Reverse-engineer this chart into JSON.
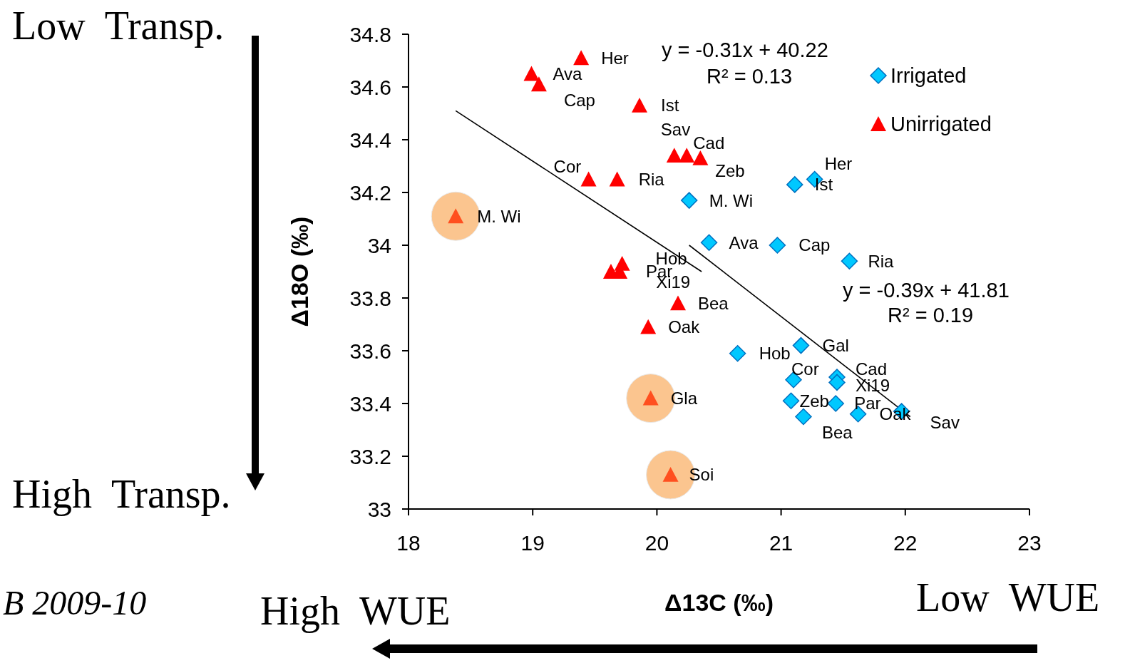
{
  "chart_data": {
    "type": "scatter",
    "xlabel": "Δ13C (‰)",
    "ylabel": "Δ18O (‰)",
    "xlim": [
      18,
      23
    ],
    "xticks": [
      18,
      19,
      20,
      21,
      22,
      23
    ],
    "ylim": [
      33,
      34.8
    ],
    "yticks": [
      33,
      {
        "value": 33.2,
        "label": "33.2"
      },
      {
        "value": 33.4,
        "label": "33.4"
      },
      {
        "value": 33.6,
        "label": "33.6"
      },
      {
        "value": 33.8,
        "label": "33.8"
      },
      34,
      {
        "value": 34.2,
        "label": "34.2"
      },
      {
        "value": 34.4,
        "label": "34.4"
      },
      {
        "value": 34.6,
        "label": "34.6"
      },
      {
        "value": 34.8,
        "label": "34.8"
      }
    ],
    "grid": false,
    "legend": "top right",
    "series": [
      {
        "marker": "circle",
        "color": "#fbc58f",
        "x": [
          18.38,
          19.95,
          20.11
        ],
        "values": [
          34.11,
          33.42,
          33.13
        ]
      },
      {
        "type": "line",
        "color": "#000000",
        "x": [
          18.38,
          20.36
        ],
        "values": [
          34.51,
          33.9
        ]
      },
      {
        "type": "line",
        "color": "#000000",
        "x": [
          20.26,
          22.04
        ],
        "values": [
          34.0,
          33.35
        ]
      },
      {
        "name": "Irrigated",
        "marker": "diamond",
        "color": "#00c8ff",
        "x": [
          21.27,
          21.11,
          20.26,
          20.42,
          20.97,
          21.55,
          21.16,
          20.65,
          21.1,
          21.45,
          21.45,
          21.08,
          21.44,
          21.18,
          21.62,
          21.97
        ],
        "values": [
          34.25,
          34.23,
          34.17,
          34.01,
          34.0,
          33.94,
          33.62,
          33.59,
          33.49,
          33.5,
          33.48,
          33.41,
          33.4,
          33.35,
          33.36,
          33.37
        ]
      },
      {
        "name": "Unirrigated",
        "marker": "triangle",
        "color": "#ff0000",
        "colors": [
          "#ff0000",
          "#ff0000",
          "#ff0000",
          "#ff0000",
          "#ff0000",
          "#ff0000",
          "#ff0000",
          "#ff0000",
          "#ff0000",
          "#ff4f1f",
          "#ff0000",
          "#ff0000",
          "#ff0000",
          "#ff0000",
          "#ff0000",
          "#ff4f1f",
          "#ff4f1f"
        ],
        "x": [
          19.39,
          18.99,
          19.05,
          19.86,
          20.14,
          20.24,
          20.35,
          19.45,
          19.68,
          18.38,
          19.72,
          19.63,
          19.7,
          20.17,
          19.93,
          19.95,
          20.11
        ],
        "values": [
          34.71,
          34.65,
          34.61,
          34.53,
          34.34,
          34.34,
          34.33,
          34.25,
          34.25,
          34.11,
          33.93,
          33.9,
          33.9,
          33.78,
          33.69,
          33.42,
          33.13
        ]
      }
    ],
    "annotations": [
      "Low  Transp.",
      "High  Transp.",
      "B 2009-10",
      "High  WUE",
      "Low  WUE",
      "y = -0.31x + 40.22",
      "R² = 0.13",
      "y = -0.39x + 41.81",
      "R² = 0.19",
      {
        "text": "Her",
        "x": 19.39,
        "y": 34.71
      },
      {
        "text": "Ava",
        "x": 18.99,
        "y": 34.65
      },
      {
        "text": "Cap",
        "x": 19.05,
        "y": 34.61
      },
      {
        "text": "Ist",
        "x": 19.86,
        "y": 34.53
      },
      {
        "text": "Sav",
        "x": 20.14,
        "y": 34.34
      },
      {
        "text": "Cad",
        "x": 20.24,
        "y": 34.34
      },
      {
        "text": "Zeb",
        "x": 20.35,
        "y": 34.33
      },
      {
        "text": "Cor",
        "x": 19.45,
        "y": 34.25
      },
      {
        "text": "Ria",
        "x": 19.68,
        "y": 34.25
      },
      {
        "text": "M. Wi",
        "x": 18.38,
        "y": 34.11
      },
      {
        "text": "Hob",
        "x": 19.72,
        "y": 33.93
      },
      {
        "text": "Par",
        "x": 19.63,
        "y": 33.9
      },
      {
        "text": "Xi19",
        "x": 19.7,
        "y": 33.9
      },
      {
        "text": "Bea",
        "x": 20.17,
        "y": 33.78
      },
      {
        "text": "Oak",
        "x": 19.93,
        "y": 33.69
      },
      {
        "text": "Gla",
        "x": 19.95,
        "y": 33.42
      },
      {
        "text": "Soi",
        "x": 20.11,
        "y": 33.13
      },
      {
        "text": "Her",
        "x": 21.27,
        "y": 34.25
      },
      {
        "text": "Ist",
        "x": 21.11,
        "y": 34.23
      },
      {
        "text": "M. Wi",
        "x": 20.26,
        "y": 34.17
      },
      {
        "text": "Ava",
        "x": 20.42,
        "y": 34.01
      },
      {
        "text": "Cap",
        "x": 20.97,
        "y": 34.0
      },
      {
        "text": "Ria",
        "x": 21.55,
        "y": 33.94
      },
      {
        "text": "Gal",
        "x": 21.16,
        "y": 33.62
      },
      {
        "text": "Hob",
        "x": 20.65,
        "y": 33.59
      },
      {
        "text": "Cor",
        "x": 21.1,
        "y": 33.49
      },
      {
        "text": "Cad",
        "x": 21.45,
        "y": 33.5
      },
      {
        "text": "Xi19",
        "x": 21.45,
        "y": 33.48
      },
      {
        "text": "Zeb",
        "x": 21.08,
        "y": 33.41
      },
      {
        "text": "Par",
        "x": 21.44,
        "y": 33.4
      },
      {
        "text": "Bea",
        "x": 21.18,
        "y": 33.35
      },
      {
        "text": "Oak",
        "x": 21.62,
        "y": 33.36
      },
      {
        "text": "Sav",
        "x": 21.97,
        "y": 33.37
      }
    ]
  }
}
